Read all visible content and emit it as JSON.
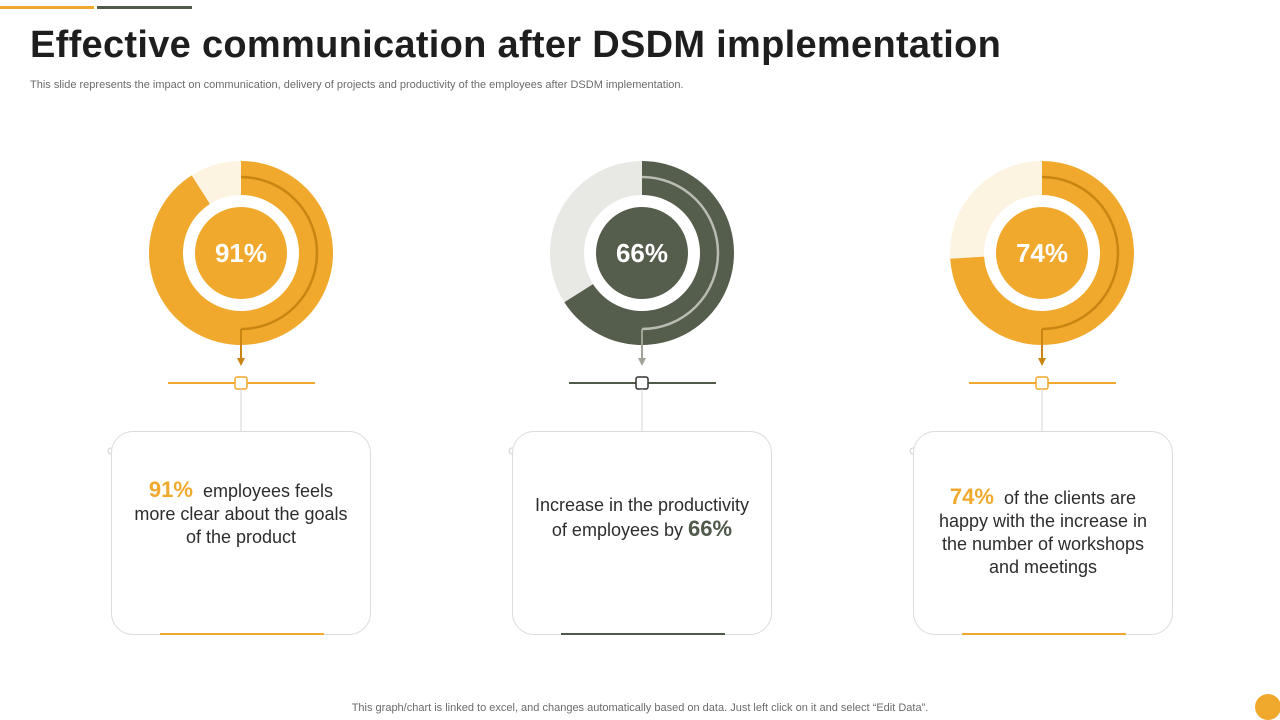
{
  "title": "Effective communication after DSDM implementation",
  "subtitle": "This slide represents the impact on communication, delivery of projects and productivity of the employees after DSDM implementation.",
  "footer": "This graph/chart is linked to excel,  and changes automatically based on data. Just left click on it and select “Edit Data”.",
  "colors": {
    "accent": "#f0a92c",
    "dark": "#4f5a4a",
    "text": "#2d2d2d"
  },
  "chart_data": {
    "type": "pie",
    "variant": "donut",
    "charts": [
      {
        "label": "91%",
        "value": 91,
        "color": "#f0a92c",
        "remainder_color": "#fdf3e1",
        "arc_color": "#c98512",
        "center_color": "#f0a92c"
      },
      {
        "label": "66%",
        "value": 66,
        "color": "#555d4d",
        "remainder_color": "#e8e9e4",
        "arc_color": "#b9bcb2",
        "center_color": "#555d4d"
      },
      {
        "label": "74%",
        "value": 74,
        "color": "#f0a92c",
        "remainder_color": "#fdf3e1",
        "arc_color": "#c98512",
        "center_color": "#f0a92c"
      }
    ]
  },
  "cards": [
    {
      "highlight": "91%",
      "text_after": "employees feels more clear about the goals of the product"
    },
    {
      "text_before": "Increase in the productivity of employees by",
      "highlight": "66%"
    },
    {
      "highlight": "74%",
      "text_after": "of the clients are happy with the increase in the number of workshops and meetings"
    }
  ]
}
